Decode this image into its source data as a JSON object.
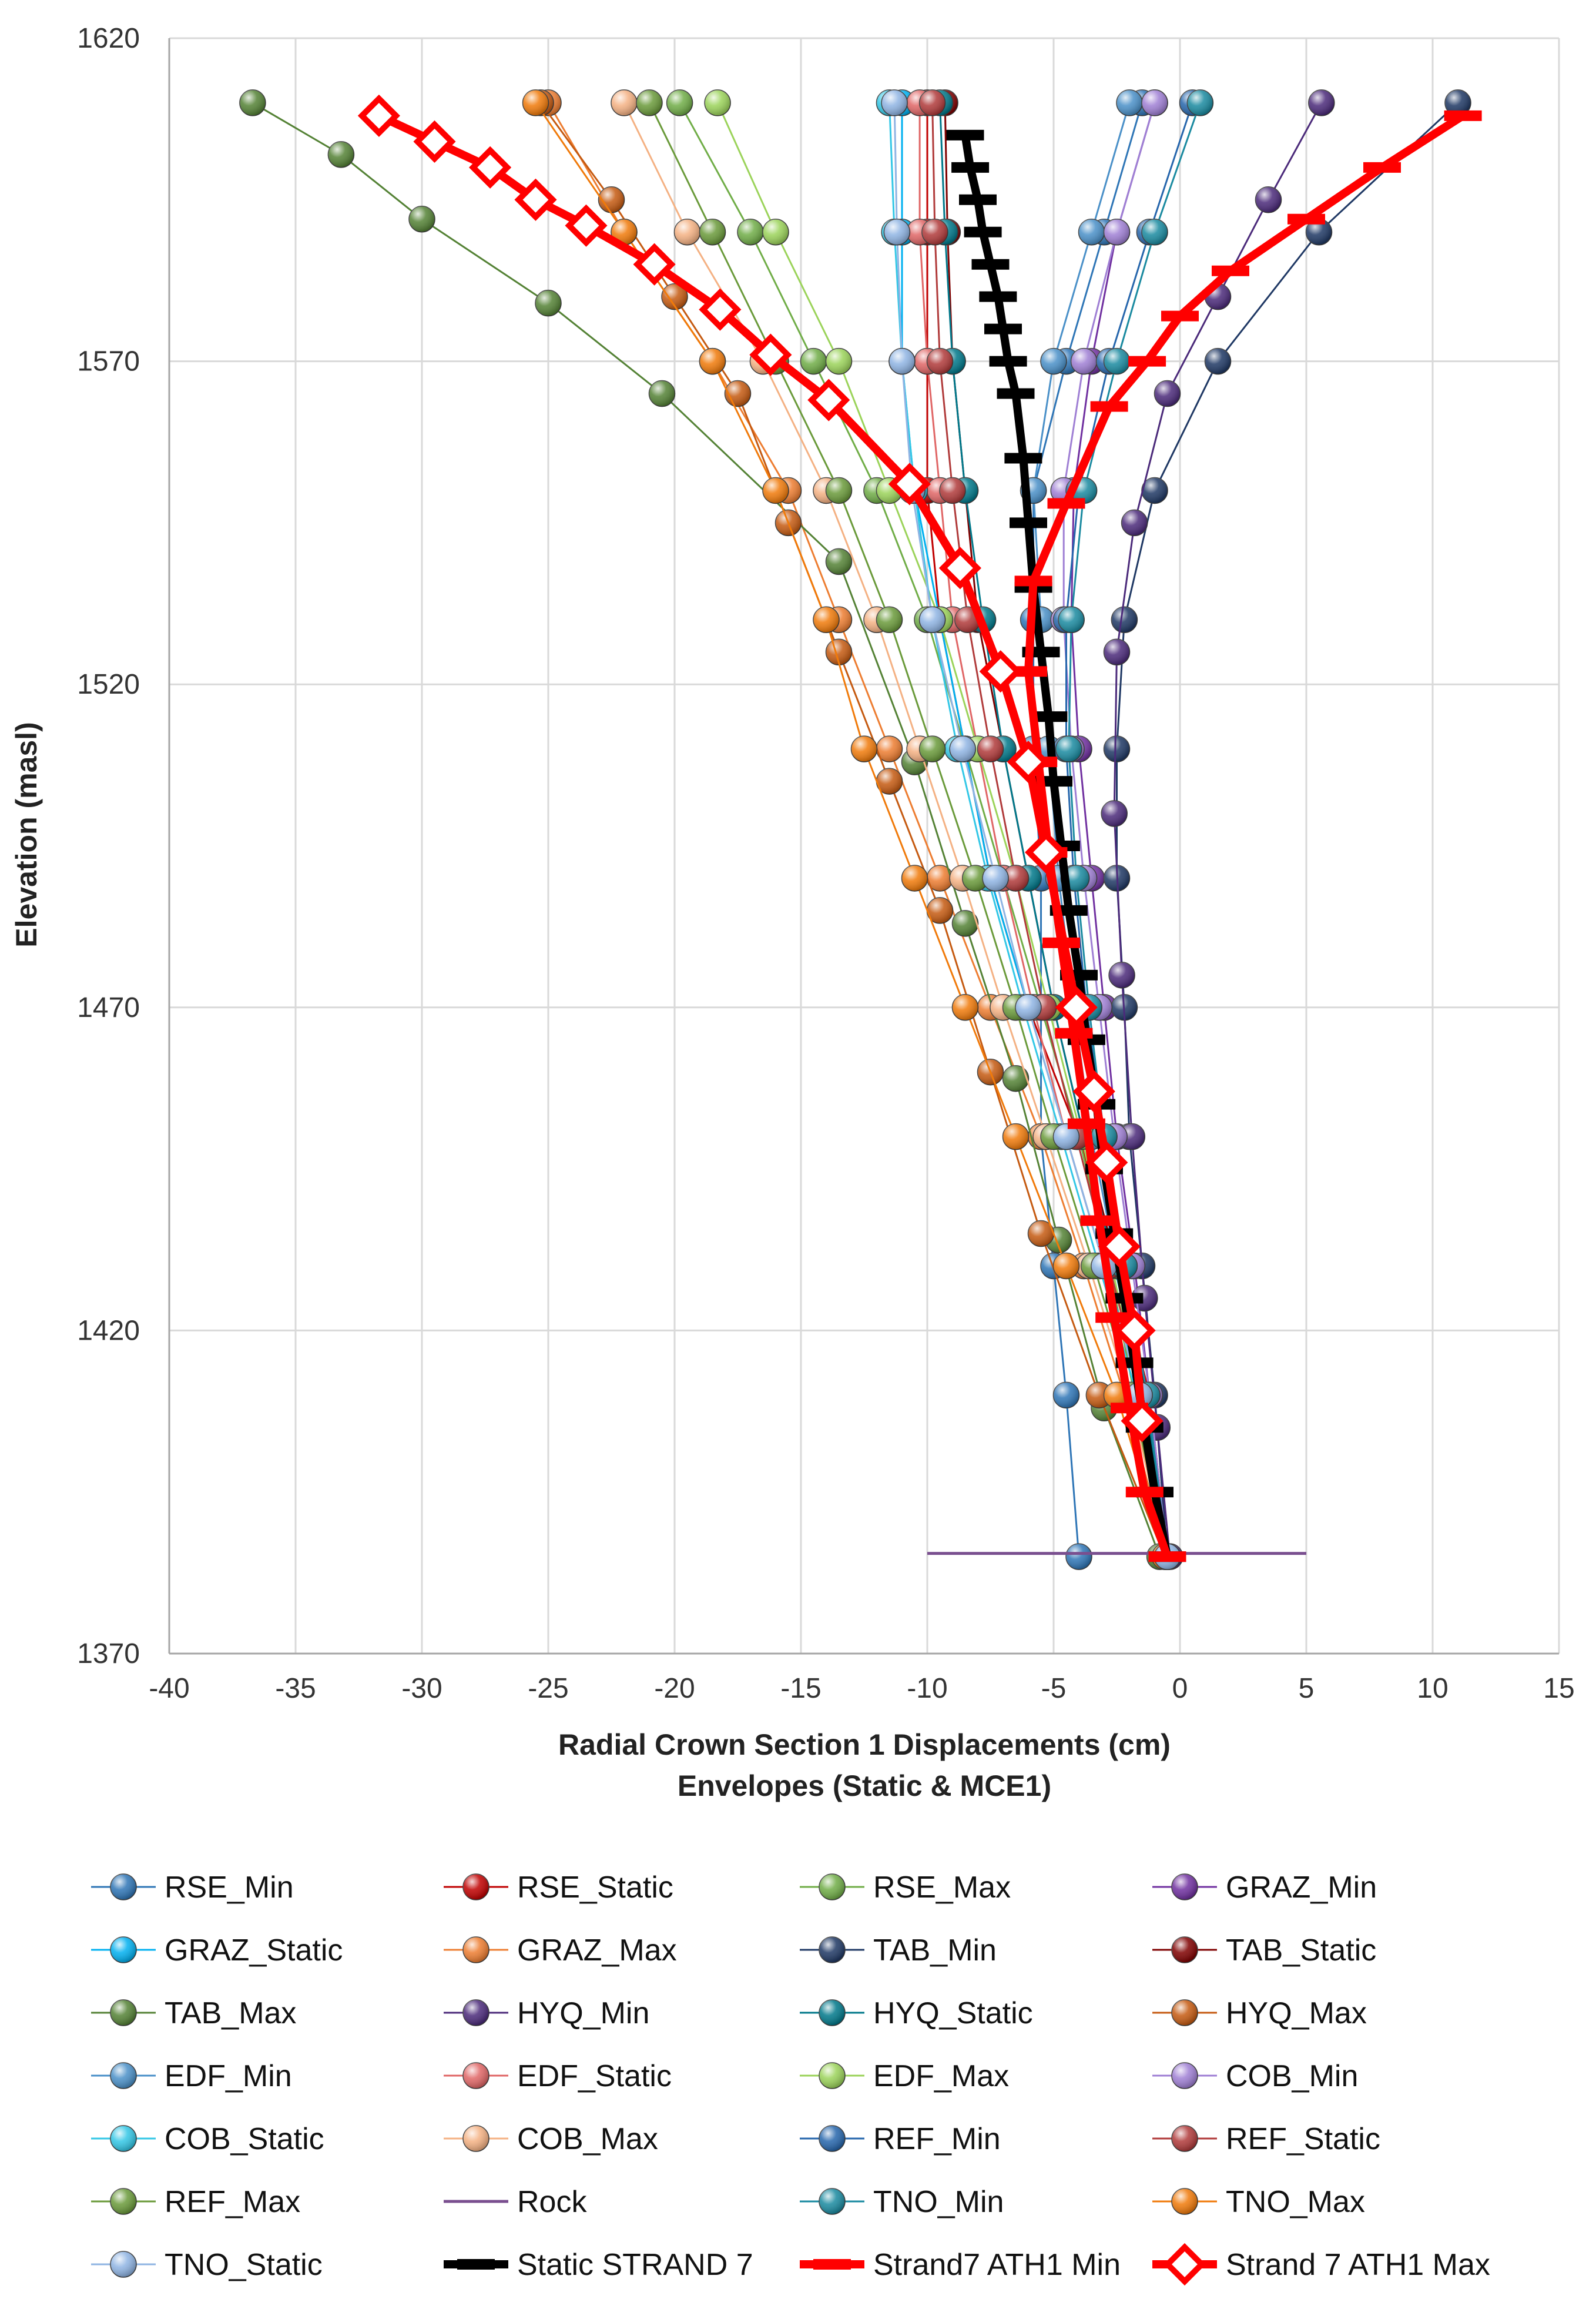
{
  "chart_data": {
    "type": "line",
    "xlabel": "Radial Crown Section 1 Displacements (cm)",
    "xlabel_line2": "Envelopes (Static & MCE1)",
    "ylabel": "Elevation (masl)",
    "xlim": [
      -40,
      15
    ],
    "ylim": [
      1370,
      1620
    ],
    "xticks": [
      "-40",
      "-35",
      "-30",
      "-25",
      "-20",
      "-15",
      "-10",
      "-5",
      "0",
      "5",
      "10",
      "15"
    ],
    "yticks": [
      "1370",
      "1420",
      "1470",
      "1520",
      "1570",
      "1620"
    ],
    "grid": true,
    "legend_position": "bottom",
    "series": [
      {
        "name": "RSE_Min",
        "color": "#2e75b6",
        "marker": "ball",
        "x": [
          -1.5,
          -3,
          -4.5,
          -5.8,
          -5.8,
          -5.8,
          -5.5,
          -5.5,
          -5.5,
          -5,
          -4.5,
          -4
        ],
        "y": [
          1610,
          1590,
          1570,
          1550,
          1530,
          1510,
          1490,
          1470,
          1450,
          1430,
          1410,
          1385
        ]
      },
      {
        "name": "RSE_Static",
        "color": "#c00000",
        "marker": "ball",
        "x": [
          -10,
          -10,
          -10,
          -10,
          -9.5,
          -8.5,
          -7.5,
          -6,
          -4,
          -2.5,
          -1.2,
          -0.5
        ],
        "y": [
          1610,
          1590,
          1570,
          1550,
          1530,
          1510,
          1490,
          1470,
          1450,
          1430,
          1410,
          1385
        ]
      },
      {
        "name": "RSE_Max",
        "color": "#70ad47",
        "marker": "ball",
        "x": [
          -19.8,
          -17,
          -14.5,
          -12,
          -10,
          -8.5,
          -7,
          -5.5,
          -4,
          -2.8,
          -1.8,
          -0.5
        ],
        "y": [
          1610,
          1590,
          1570,
          1550,
          1530,
          1510,
          1490,
          1470,
          1450,
          1430,
          1410,
          1385
        ]
      },
      {
        "name": "GRAZ_Min",
        "color": "#7030a0",
        "marker": "ball",
        "x": [
          -1,
          -2.5,
          -3.5,
          -4.2,
          -4.3,
          -4,
          -3.5,
          -3,
          -2.5,
          -1.8,
          -1.2,
          -0.5
        ],
        "y": [
          1610,
          1590,
          1570,
          1550,
          1530,
          1510,
          1490,
          1470,
          1450,
          1430,
          1410,
          1385
        ]
      },
      {
        "name": "GRAZ_Static",
        "color": "#00b0f0",
        "marker": "ball",
        "x": [
          -11,
          -11,
          -11,
          -10.5,
          -9.5,
          -8.5,
          -7.5,
          -6,
          -4.5,
          -3,
          -1.5,
          -0.5
        ],
        "y": [
          1610,
          1590,
          1570,
          1550,
          1530,
          1510,
          1490,
          1470,
          1450,
          1430,
          1410,
          1385
        ]
      },
      {
        "name": "GRAZ_Max",
        "color": "#ed7d31",
        "marker": "ball",
        "x": [
          -25,
          -22,
          -18.5,
          -15.5,
          -13.5,
          -11.5,
          -9.5,
          -7.5,
          -5.5,
          -3.8,
          -2.2,
          -0.5
        ],
        "y": [
          1610,
          1590,
          1570,
          1550,
          1530,
          1510,
          1490,
          1470,
          1450,
          1430,
          1410,
          1385
        ]
      },
      {
        "name": "TAB_Min",
        "color": "#1f3864",
        "marker": "ball",
        "x": [
          11,
          5.5,
          1.5,
          -1,
          -2.2,
          -2.5,
          -2.5,
          -2.2,
          -2,
          -1.5,
          -1,
          -0.5
        ],
        "y": [
          1610,
          1590,
          1570,
          1550,
          1530,
          1510,
          1490,
          1470,
          1450,
          1430,
          1410,
          1385
        ]
      },
      {
        "name": "TAB_Static",
        "color": "#7f0000",
        "marker": "ball",
        "x": [
          -9.3,
          -9.2,
          -9,
          -8.5,
          -8,
          -7,
          -6,
          -5,
          -3.8,
          -2.5,
          -1.3,
          -0.5
        ],
        "y": [
          1610,
          1590,
          1570,
          1550,
          1530,
          1510,
          1490,
          1470,
          1450,
          1430,
          1410,
          1385
        ]
      },
      {
        "name": "TAB_Max",
        "color": "#548235",
        "marker": "ball",
        "x": [
          -36.7,
          -33.2,
          -30,
          -25,
          -20.5,
          -13.5,
          -10.5,
          -8.5,
          -6.5,
          -4.8,
          -3,
          -0.8
        ],
        "y": [
          1610,
          1602,
          1592,
          1579,
          1565,
          1539,
          1508,
          1483,
          1459,
          1434,
          1408,
          1385
        ]
      },
      {
        "name": "HYQ_Min",
        "color": "#4b2a7a",
        "marker": "ball",
        "x": [
          5.6,
          3.5,
          1.5,
          -0.5,
          -1.8,
          -2.5,
          -2.6,
          -2.3,
          -1.9,
          -1.4,
          -0.9,
          -0.4
        ],
        "y": [
          1610,
          1595,
          1580,
          1565,
          1545,
          1525,
          1500,
          1475,
          1450,
          1425,
          1405,
          1385
        ]
      },
      {
        "name": "HYQ_Static",
        "color": "#00788a",
        "marker": "ball",
        "x": [
          -9.5,
          -9.3,
          -9,
          -8.5,
          -7.8,
          -7,
          -6,
          -5,
          -3.8,
          -2.6,
          -1.4,
          -0.5
        ],
        "y": [
          1610,
          1590,
          1570,
          1550,
          1530,
          1510,
          1490,
          1470,
          1450,
          1430,
          1410,
          1385
        ]
      },
      {
        "name": "HYQ_Max",
        "color": "#c55a11",
        "marker": "ball",
        "x": [
          -25.3,
          -22.5,
          -20,
          -17.5,
          -15.5,
          -13.5,
          -11.5,
          -9.5,
          -7.5,
          -5.5,
          -3.2,
          -0.6
        ],
        "y": [
          1610,
          1595,
          1580,
          1565,
          1545,
          1525,
          1505,
          1485,
          1460,
          1435,
          1410,
          1385
        ]
      },
      {
        "name": "EDF_Min",
        "color": "#4a90c8",
        "marker": "ball",
        "x": [
          -2,
          -3.5,
          -5,
          -5.8,
          -5.5,
          -5.2,
          -4.8,
          -4.2,
          -3.5,
          -2.5,
          -1.5,
          -0.5
        ],
        "y": [
          1610,
          1590,
          1570,
          1550,
          1530,
          1510,
          1490,
          1470,
          1450,
          1430,
          1410,
          1385
        ]
      },
      {
        "name": "EDF_Static",
        "color": "#e06666",
        "marker": "ball",
        "x": [
          -10.3,
          -10.3,
          -10,
          -9.5,
          -9,
          -8,
          -7,
          -5.8,
          -4.5,
          -3,
          -1.6,
          -0.5
        ],
        "y": [
          1610,
          1590,
          1570,
          1550,
          1530,
          1510,
          1490,
          1470,
          1450,
          1430,
          1410,
          1385
        ]
      },
      {
        "name": "EDF_Max",
        "color": "#9bd35a",
        "marker": "ball",
        "x": [
          -18.3,
          -16,
          -13.5,
          -11.5,
          -9.5,
          -8,
          -6.5,
          -5.2,
          -3.9,
          -2.7,
          -1.6,
          -0.5
        ],
        "y": [
          1610,
          1590,
          1570,
          1550,
          1530,
          1510,
          1490,
          1470,
          1450,
          1430,
          1410,
          1385
        ]
      },
      {
        "name": "COB_Min",
        "color": "#9f7fd4",
        "marker": "ball",
        "x": [
          -1,
          -2.5,
          -3.8,
          -4.6,
          -4.6,
          -4.3,
          -3.8,
          -3.2,
          -2.6,
          -1.9,
          -1.2,
          -0.5
        ],
        "y": [
          1610,
          1590,
          1570,
          1550,
          1530,
          1510,
          1490,
          1470,
          1450,
          1430,
          1410,
          1385
        ]
      },
      {
        "name": "COB_Static",
        "color": "#33c7e6",
        "marker": "ball",
        "x": [
          -11.5,
          -11.3,
          -11,
          -10.5,
          -9.8,
          -8.8,
          -7.6,
          -6.2,
          -4.7,
          -3.2,
          -1.7,
          -0.5
        ],
        "y": [
          1610,
          1590,
          1570,
          1550,
          1530,
          1510,
          1490,
          1470,
          1450,
          1430,
          1410,
          1385
        ]
      },
      {
        "name": "COB_Max",
        "color": "#f4b183",
        "marker": "ball",
        "x": [
          -22,
          -19.5,
          -16.5,
          -14,
          -12,
          -10.3,
          -8.6,
          -7,
          -5.3,
          -3.6,
          -2,
          -0.5
        ],
        "y": [
          1610,
          1590,
          1570,
          1550,
          1530,
          1510,
          1490,
          1470,
          1450,
          1430,
          1410,
          1385
        ]
      },
      {
        "name": "REF_Min",
        "color": "#2666ac",
        "marker": "ball",
        "x": [
          0.5,
          -1.2,
          -2.8,
          -4,
          -4.5,
          -4.5,
          -4.2,
          -3.7,
          -3,
          -2.2,
          -1.3,
          -0.5
        ],
        "y": [
          1610,
          1590,
          1570,
          1550,
          1530,
          1510,
          1490,
          1470,
          1450,
          1430,
          1410,
          1385
        ]
      },
      {
        "name": "REF_Static",
        "color": "#b03a3a",
        "marker": "ball",
        "x": [
          -9.8,
          -9.7,
          -9.5,
          -9,
          -8.4,
          -7.5,
          -6.5,
          -5.4,
          -4.1,
          -2.8,
          -1.5,
          -0.5
        ],
        "y": [
          1610,
          1590,
          1570,
          1550,
          1530,
          1510,
          1490,
          1470,
          1450,
          1430,
          1410,
          1385
        ]
      },
      {
        "name": "REF_Max",
        "color": "#6a9a3a",
        "marker": "ball",
        "x": [
          -21,
          -18.5,
          -16,
          -13.5,
          -11.5,
          -9.8,
          -8.1,
          -6.5,
          -5,
          -3.4,
          -1.9,
          -0.5
        ],
        "y": [
          1610,
          1590,
          1570,
          1550,
          1530,
          1510,
          1490,
          1470,
          1450,
          1430,
          1410,
          1385
        ]
      },
      {
        "name": "Rock",
        "color": "#7a4f8f",
        "marker": "none",
        "x": [
          -10,
          5
        ],
        "y": [
          1385.5,
          1385.5
        ]
      },
      {
        "name": "TNO_Min",
        "color": "#1a8aa0",
        "marker": "ball",
        "x": [
          0.8,
          -1,
          -2.5,
          -3.8,
          -4.3,
          -4.4,
          -4.1,
          -3.6,
          -3,
          -2.2,
          -1.3,
          -0.5
        ],
        "y": [
          1610,
          1590,
          1570,
          1550,
          1530,
          1510,
          1490,
          1470,
          1450,
          1430,
          1410,
          1385
        ]
      },
      {
        "name": "TNO_Max",
        "color": "#f07a0a",
        "marker": "ball",
        "x": [
          -25.5,
          -22,
          -18.5,
          -16,
          -14,
          -12.5,
          -10.5,
          -8.5,
          -6.5,
          -4.5,
          -2.5,
          -0.6
        ],
        "y": [
          1610,
          1590,
          1570,
          1550,
          1530,
          1510,
          1490,
          1470,
          1450,
          1430,
          1410,
          1385
        ]
      },
      {
        "name": "TNO_Static",
        "color": "#8fb4e3",
        "marker": "ball",
        "x": [
          -11.3,
          -11.2,
          -11,
          -10.6,
          -9.8,
          -8.6,
          -7.3,
          -6,
          -4.5,
          -3,
          -1.6,
          -0.5
        ],
        "y": [
          1610,
          1590,
          1570,
          1550,
          1530,
          1510,
          1490,
          1470,
          1450,
          1430,
          1410,
          1385
        ]
      },
      {
        "name": "Static STRAND 7",
        "color": "#000000",
        "marker": "tick",
        "x": [
          -8.5,
          -8.3,
          -8,
          -7.8,
          -7.5,
          -7.2,
          -7,
          -6.8,
          -6.5,
          -6.2,
          -6,
          -5.8,
          -5.5,
          -5.2,
          -5,
          -4.7,
          -4.4,
          -4,
          -3.7,
          -3.3,
          -3,
          -2.6,
          -2.2,
          -1.8,
          -1.4,
          -1,
          -0.5
        ],
        "y": [
          1605,
          1600,
          1595,
          1590,
          1585,
          1580,
          1575,
          1570,
          1565,
          1555,
          1545,
          1535,
          1525,
          1515,
          1505,
          1495,
          1485,
          1475,
          1465,
          1455,
          1445,
          1435,
          1425,
          1415,
          1405,
          1395,
          1385
        ]
      },
      {
        "name": "Strand7 ATH1 Min",
        "color": "#ff0000",
        "marker": "tick",
        "x": [
          11.2,
          8,
          5,
          2,
          0,
          -1.3,
          -2.8,
          -4.5,
          -5.8,
          -6,
          -5.6,
          -5.2,
          -4.7,
          -4.2,
          -3.7,
          -3.2,
          -2.6,
          -2,
          -1.4,
          -0.5
        ],
        "y": [
          1608,
          1600,
          1592,
          1584,
          1577,
          1570,
          1563,
          1548,
          1536,
          1522,
          1508,
          1494,
          1480,
          1466,
          1452,
          1437,
          1422,
          1408,
          1395,
          1385
        ]
      },
      {
        "name": "Strand 7 ATH1 Max",
        "color": "#ff0000",
        "marker": "diamond",
        "x": [
          -31.7,
          -29.5,
          -27.3,
          -25.5,
          -23.5,
          -20.8,
          -18.2,
          -16.2,
          -13.9,
          -10.7,
          -8.7,
          -7.1,
          -6,
          -5.3,
          -4.1,
          -3.4,
          -2.9,
          -2.4,
          -1.8,
          -1.5
        ],
        "y": [
          1608,
          1604,
          1600,
          1595,
          1591,
          1585,
          1578,
          1571,
          1564,
          1551,
          1538,
          1522,
          1508,
          1494,
          1470,
          1457,
          1446,
          1433,
          1420,
          1406
        ]
      }
    ]
  }
}
